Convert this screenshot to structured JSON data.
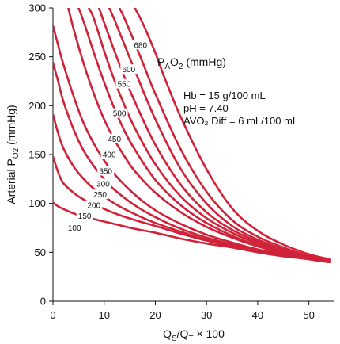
{
  "chart_data": {
    "type": "line",
    "xlabel_main": "Q",
    "xlabel_sub1": "S",
    "xlabel_mid": "/Q",
    "xlabel_sub2": "T",
    "xlabel_tail": " × 100",
    "ylabel_main": "Arterial P",
    "ylabel_sub": "O2",
    "ylabel_tail": " (mmHg)",
    "xlim": [
      0,
      55
    ],
    "ylim": [
      0,
      300
    ],
    "x_ticks": [
      "0",
      "10",
      "20",
      "30",
      "40",
      "50"
    ],
    "y_ticks": [
      "0",
      "50",
      "100",
      "150",
      "200",
      "250",
      "300"
    ],
    "legend_main": "P",
    "legend_sub1": "A",
    "legend_mid": "O",
    "legend_sub2": "2",
    "legend_tail": " (mmHg)",
    "annotations": [
      "Hb = 15 g/100 mL",
      "pH = 7.40",
      "AVO₂ Diff = 6 mL/100 mL"
    ],
    "line_color": "#d0233a",
    "series": [
      {
        "name": "100",
        "points": [
          [
            0,
            101
          ],
          [
            1,
            97
          ],
          [
            3,
            92
          ],
          [
            5,
            88
          ],
          [
            8,
            84
          ],
          [
            12,
            79
          ],
          [
            16,
            74
          ],
          [
            20,
            70
          ],
          [
            25,
            64
          ],
          [
            30,
            59
          ],
          [
            35,
            55
          ],
          [
            40,
            50
          ],
          [
            45,
            46
          ],
          [
            50,
            43
          ],
          [
            54,
            40
          ]
        ]
      },
      {
        "name": "150",
        "points": [
          [
            0,
            148
          ],
          [
            1,
            132
          ],
          [
            2,
            121
          ],
          [
            4,
            111
          ],
          [
            6,
            104
          ],
          [
            8,
            99
          ],
          [
            12,
            90
          ],
          [
            16,
            83
          ],
          [
            20,
            77
          ],
          [
            25,
            69
          ],
          [
            30,
            62
          ],
          [
            35,
            56
          ],
          [
            40,
            51
          ],
          [
            45,
            47
          ],
          [
            50,
            43
          ],
          [
            54,
            40
          ]
        ]
      },
      {
        "name": "200",
        "points": [
          [
            0,
            191
          ],
          [
            1,
            172
          ],
          [
            2,
            157
          ],
          [
            4,
            138
          ],
          [
            6,
            125
          ],
          [
            8,
            115
          ],
          [
            12,
            100
          ],
          [
            16,
            89
          ],
          [
            20,
            80
          ],
          [
            25,
            71
          ],
          [
            30,
            63
          ],
          [
            35,
            57
          ],
          [
            40,
            52
          ],
          [
            45,
            47
          ],
          [
            50,
            43
          ],
          [
            54,
            40
          ]
        ]
      },
      {
        "name": "250",
        "points": [
          [
            0,
            244
          ],
          [
            1,
            225
          ],
          [
            2,
            205
          ],
          [
            4,
            176
          ],
          [
            6,
            154
          ],
          [
            8,
            138
          ],
          [
            10,
            125
          ],
          [
            12,
            114
          ],
          [
            16,
            98
          ],
          [
            20,
            86
          ],
          [
            25,
            74
          ],
          [
            30,
            65
          ],
          [
            35,
            58
          ],
          [
            40,
            52
          ],
          [
            45,
            47
          ],
          [
            50,
            43
          ],
          [
            54,
            40
          ]
        ]
      },
      {
        "name": "300",
        "points": [
          [
            0,
            282
          ],
          [
            1,
            262
          ],
          [
            2,
            243
          ],
          [
            4,
            210
          ],
          [
            6,
            182
          ],
          [
            8,
            161
          ],
          [
            10,
            144
          ],
          [
            12,
            130
          ],
          [
            16,
            109
          ],
          [
            20,
            93
          ],
          [
            25,
            79
          ],
          [
            30,
            68
          ],
          [
            35,
            60
          ],
          [
            40,
            53
          ],
          [
            45,
            48
          ],
          [
            50,
            43
          ],
          [
            54,
            40
          ]
        ]
      },
      {
        "name": "350",
        "points": [
          [
            3,
            300
          ],
          [
            4,
            279
          ],
          [
            6,
            243
          ],
          [
            8,
            212
          ],
          [
            10,
            186
          ],
          [
            12,
            165
          ],
          [
            14,
            148
          ],
          [
            16,
            133
          ],
          [
            20,
            111
          ],
          [
            25,
            91
          ],
          [
            30,
            76
          ],
          [
            35,
            65
          ],
          [
            40,
            56
          ],
          [
            45,
            49
          ],
          [
            50,
            44
          ],
          [
            54,
            41
          ]
        ]
      },
      {
        "name": "400",
        "points": [
          [
            5,
            300
          ],
          [
            6,
            286
          ],
          [
            8,
            254
          ],
          [
            10,
            224
          ],
          [
            12,
            197
          ],
          [
            14,
            174
          ],
          [
            16,
            155
          ],
          [
            20,
            124
          ],
          [
            25,
            98
          ],
          [
            30,
            80
          ],
          [
            35,
            67
          ],
          [
            40,
            57
          ],
          [
            45,
            50
          ],
          [
            50,
            44
          ],
          [
            54,
            41
          ]
        ]
      },
      {
        "name": "450",
        "points": [
          [
            7,
            300
          ],
          [
            8,
            289
          ],
          [
            10,
            256
          ],
          [
            12,
            226
          ],
          [
            14,
            200
          ],
          [
            16,
            177
          ],
          [
            20,
            140
          ],
          [
            25,
            107
          ],
          [
            30,
            85
          ],
          [
            35,
            70
          ],
          [
            40,
            59
          ],
          [
            45,
            51
          ],
          [
            50,
            45
          ],
          [
            54,
            41
          ]
        ]
      },
      {
        "name": "500",
        "points": [
          [
            9,
            300
          ],
          [
            10,
            285
          ],
          [
            12,
            256
          ],
          [
            14,
            229
          ],
          [
            16,
            204
          ],
          [
            20,
            160
          ],
          [
            25,
            119
          ],
          [
            30,
            91
          ],
          [
            35,
            73
          ],
          [
            40,
            61
          ],
          [
            45,
            52
          ],
          [
            50,
            45
          ],
          [
            54,
            41
          ]
        ]
      },
      {
        "name": "550",
        "points": [
          [
            11,
            300
          ],
          [
            12,
            288
          ],
          [
            14,
            262
          ],
          [
            16,
            236
          ],
          [
            20,
            186
          ],
          [
            25,
            135
          ],
          [
            30,
            100
          ],
          [
            35,
            77
          ],
          [
            40,
            63
          ],
          [
            45,
            53
          ],
          [
            50,
            46
          ],
          [
            54,
            41
          ]
        ]
      },
      {
        "name": "600",
        "points": [
          [
            13,
            300
          ],
          [
            14,
            289
          ],
          [
            16,
            264
          ],
          [
            18,
            238
          ],
          [
            20,
            212
          ],
          [
            25,
            155
          ],
          [
            30,
            112
          ],
          [
            35,
            83
          ],
          [
            40,
            66
          ],
          [
            45,
            55
          ],
          [
            50,
            46
          ],
          [
            54,
            42
          ]
        ]
      },
      {
        "name": "680",
        "points": [
          [
            16,
            300
          ],
          [
            17,
            290
          ],
          [
            18,
            279
          ],
          [
            20,
            254
          ],
          [
            22,
            226
          ],
          [
            25,
            188
          ],
          [
            30,
            135
          ],
          [
            35,
            95
          ],
          [
            40,
            72
          ],
          [
            45,
            58
          ],
          [
            50,
            48
          ],
          [
            54,
            43
          ]
        ]
      }
    ],
    "curve_label_positions": [
      {
        "name": "100",
        "x": 4.2,
        "y": 75
      },
      {
        "name": "150",
        "x": 6.2,
        "y": 87
      },
      {
        "name": "200",
        "x": 8.0,
        "y": 98
      },
      {
        "name": "250",
        "x": 9.2,
        "y": 109
      },
      {
        "name": "300",
        "x": 9.8,
        "y": 120
      },
      {
        "name": "350",
        "x": 10.3,
        "y": 133
      },
      {
        "name": "400",
        "x": 11.0,
        "y": 150
      },
      {
        "name": "450",
        "x": 12.0,
        "y": 166
      },
      {
        "name": "500",
        "x": 13.0,
        "y": 192
      },
      {
        "name": "550",
        "x": 13.9,
        "y": 222
      },
      {
        "name": "600",
        "x": 14.8,
        "y": 237
      },
      {
        "name": "680",
        "x": 17.1,
        "y": 262
      }
    ]
  }
}
